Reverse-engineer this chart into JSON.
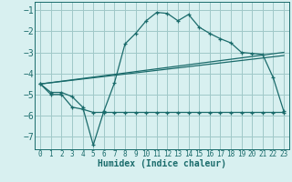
{
  "xlabel": "Humidex (Indice chaleur)",
  "bg_color": "#d8f0f0",
  "line_color": "#1a6b6b",
  "grid_color": "#a0c8c8",
  "xlim": [
    -0.5,
    23.5
  ],
  "ylim": [
    -7.6,
    -0.6
  ],
  "yticks": [
    -1,
    -2,
    -3,
    -4,
    -5,
    -6,
    -7
  ],
  "xticks": [
    0,
    1,
    2,
    3,
    4,
    5,
    6,
    7,
    8,
    9,
    10,
    11,
    12,
    13,
    14,
    15,
    16,
    17,
    18,
    19,
    20,
    21,
    22,
    23
  ],
  "line1_x": [
    0,
    1,
    2,
    3,
    4,
    5,
    6,
    7,
    8,
    9,
    10,
    11,
    12,
    13,
    14,
    15,
    16,
    17,
    18,
    19,
    20,
    21,
    22,
    23
  ],
  "line1_y": [
    -4.5,
    -4.9,
    -4.9,
    -5.1,
    -5.6,
    -7.4,
    -5.8,
    -4.45,
    -2.6,
    -2.1,
    -1.5,
    -1.1,
    -1.15,
    -1.5,
    -1.2,
    -1.8,
    -2.1,
    -2.35,
    -2.55,
    -3.0,
    -3.05,
    -3.1,
    -4.2,
    -5.8
  ],
  "line2_x": [
    0,
    1,
    2,
    3,
    4,
    5,
    6,
    7,
    8,
    9,
    10,
    11,
    12,
    13,
    14,
    15,
    16,
    17,
    18,
    19,
    20,
    21,
    22,
    23
  ],
  "line2_y": [
    -4.5,
    -5.0,
    -5.0,
    -5.6,
    -5.7,
    -5.85,
    -5.85,
    -5.85,
    -5.85,
    -5.85,
    -5.85,
    -5.85,
    -5.85,
    -5.85,
    -5.85,
    -5.85,
    -5.85,
    -5.85,
    -5.85,
    -5.85,
    -5.85,
    -5.85,
    -5.85,
    -5.85
  ],
  "line3_x": [
    0,
    23
  ],
  "line3_y": [
    -4.5,
    -3.0
  ],
  "line4_x": [
    0,
    23
  ],
  "line4_y": [
    -4.5,
    -3.15
  ]
}
